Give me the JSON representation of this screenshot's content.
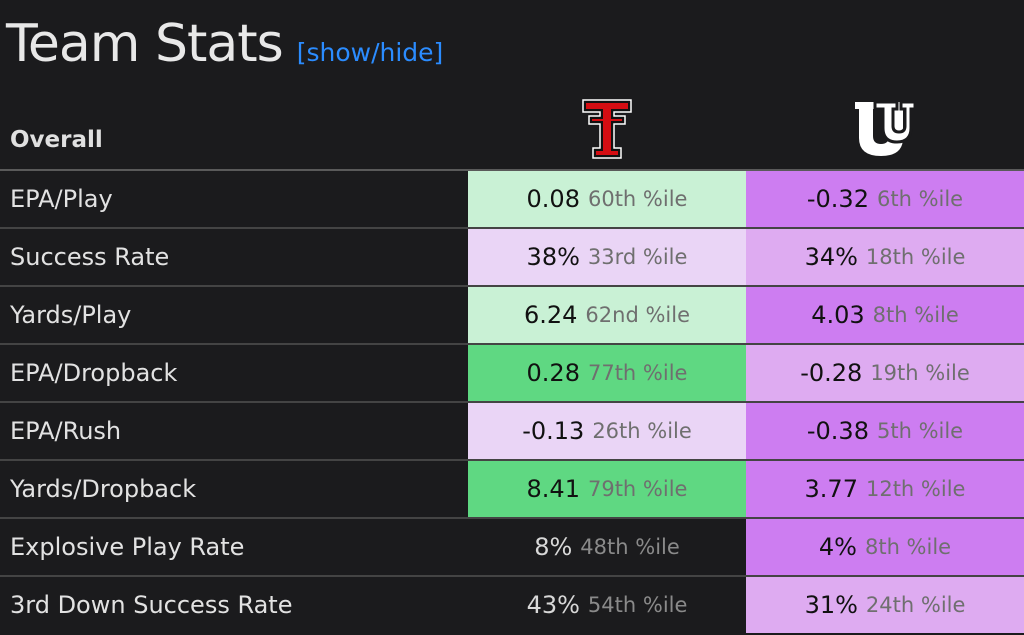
{
  "page": {
    "title": "Team Stats",
    "toggle_label": "[show/hide]"
  },
  "table": {
    "section_label": "Overall",
    "teams": [
      {
        "logo_icon": "texas-tech-double-t-logo",
        "colors": {
          "primary": "#cc0000",
          "secondary": "#000000"
        }
      },
      {
        "logo_icon": "utah-block-u-logo",
        "colors": {
          "primary": "#ffffff",
          "secondary": "#000000"
        }
      }
    ],
    "rows": [
      {
        "metric": "EPA/Play",
        "team1": {
          "value": "0.08",
          "pct": "60th %ile",
          "color": "#c9f1d5"
        },
        "team2": {
          "value": "-0.32",
          "pct": "6th %ile",
          "color": "#cd7df1"
        }
      },
      {
        "metric": "Success Rate",
        "team1": {
          "value": "38%",
          "pct": "33rd %ile",
          "color": "#ead5f6"
        },
        "team2": {
          "value": "34%",
          "pct": "18th %ile",
          "color": "#deabf1"
        }
      },
      {
        "metric": "Yards/Play",
        "team1": {
          "value": "6.24",
          "pct": "62nd %ile",
          "color": "#c9f1d5"
        },
        "team2": {
          "value": "4.03",
          "pct": "8th %ile",
          "color": "#cd7df1"
        }
      },
      {
        "metric": "EPA/Dropback",
        "team1": {
          "value": "0.28",
          "pct": "77th %ile",
          "color": "#5fd882"
        },
        "team2": {
          "value": "-0.28",
          "pct": "19th %ile",
          "color": "#deabf1"
        }
      },
      {
        "metric": "EPA/Rush",
        "team1": {
          "value": "-0.13",
          "pct": "26th %ile",
          "color": "#ead5f6"
        },
        "team2": {
          "value": "-0.38",
          "pct": "5th %ile",
          "color": "#cd7df1"
        }
      },
      {
        "metric": "Yards/Dropback",
        "team1": {
          "value": "8.41",
          "pct": "79th %ile",
          "color": "#5fd882"
        },
        "team2": {
          "value": "3.77",
          "pct": "12th %ile",
          "color": "#cd7df1"
        }
      },
      {
        "metric": "Explosive Play Rate",
        "team1": {
          "value": "8%",
          "pct": "48th %ile",
          "color": ""
        },
        "team2": {
          "value": "4%",
          "pct": "8th %ile",
          "color": "#cd7df1"
        }
      },
      {
        "metric": "3rd Down Success Rate",
        "team1": {
          "value": "43%",
          "pct": "54th %ile",
          "color": ""
        },
        "team2": {
          "value": "31%",
          "pct": "24th %ile",
          "color": "#deabf1"
        }
      }
    ]
  }
}
